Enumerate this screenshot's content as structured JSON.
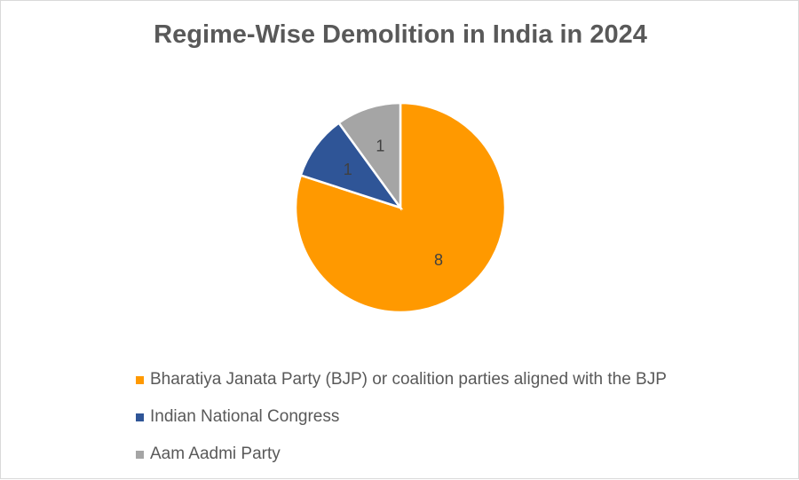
{
  "chart_data": {
    "type": "pie",
    "title": "Regime-Wise Demolition in India in 2024",
    "slices": [
      {
        "name": "Bharatiya Janata Party (BJP) or coalition parties aligned with the BJP",
        "value": 8,
        "label": "8",
        "color": "#ff9900"
      },
      {
        "name": "Indian National Congress",
        "value": 1,
        "label": "1",
        "color": "#2f5597"
      },
      {
        "name": "Aam Aadmi Party",
        "value": 1,
        "label": "1",
        "color": "#a5a5a5"
      }
    ],
    "legend_position": "bottom"
  }
}
